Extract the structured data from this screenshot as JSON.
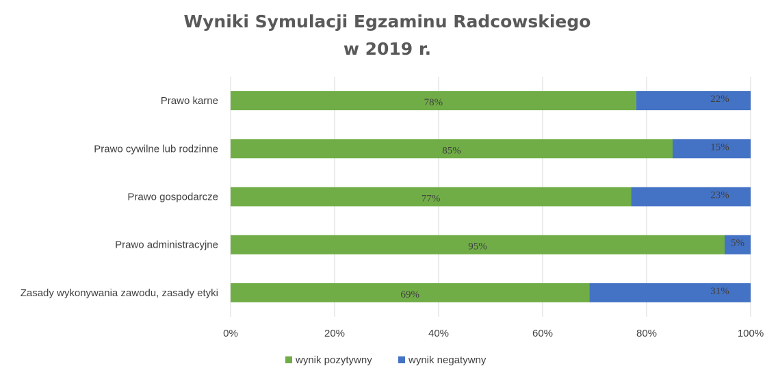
{
  "chart_data": {
    "type": "bar",
    "orientation": "horizontal",
    "stacked": "percent",
    "title_lines": [
      "Wyniki Symulacji Egzaminu Radcowskiego",
      "w 2019 r."
    ],
    "categories": [
      "Prawo karne",
      "Prawo cywilne lub rodzinne",
      "Prawo gospodarcze",
      "Prawo administracyjne",
      "Zasady wykonywania zawodu, zasady etyki"
    ],
    "series": [
      {
        "name": "wynik pozytywny",
        "color": "#70ad47",
        "values": [
          78,
          85,
          77,
          95,
          69
        ],
        "labels": [
          "78%",
          "85%",
          "77%",
          "95%",
          "69%"
        ]
      },
      {
        "name": "wynik negatywny",
        "color": "#4472c4",
        "values": [
          22,
          15,
          23,
          5,
          31
        ],
        "labels": [
          "22%",
          "15%",
          "23%",
          "5%",
          "31%"
        ]
      }
    ],
    "xlim": [
      0,
      100
    ],
    "x_ticks": [
      0,
      20,
      40,
      60,
      80,
      100
    ],
    "x_tick_labels": [
      "0%",
      "20%",
      "40%",
      "60%",
      "80%",
      "100%"
    ],
    "grid": true,
    "legend_position": "bottom"
  }
}
